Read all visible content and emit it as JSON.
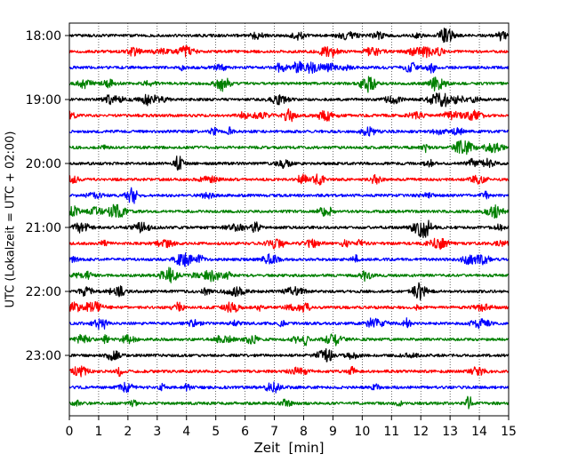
{
  "chart_data": {
    "type": "line",
    "title": "",
    "xlabel": "Zeit  [min]",
    "ylabel": "UTC (Lokalzeit = UTC + 02:00)",
    "xlim": [
      0,
      15
    ],
    "x_ticks": [
      "0",
      "1",
      "2",
      "3",
      "4",
      "5",
      "6",
      "7",
      "8",
      "9",
      "10",
      "11",
      "12",
      "13",
      "14",
      "15"
    ],
    "y_ticks": [
      "18:00",
      "19:00",
      "20:00",
      "21:00",
      "22:00",
      "23:00"
    ],
    "grid": {
      "x": true,
      "y": false,
      "style": "dotted"
    },
    "row_interval_minutes": 15,
    "row_start": "18:00",
    "row_count": 24,
    "color_cycle": [
      "#000000",
      "#ff0000",
      "#0000ff",
      "#008000"
    ],
    "series": [
      {
        "label": "18:00",
        "color": "#000000"
      },
      {
        "label": "18:15",
        "color": "#ff0000"
      },
      {
        "label": "18:30",
        "color": "#0000ff"
      },
      {
        "label": "18:45",
        "color": "#008000"
      },
      {
        "label": "19:00",
        "color": "#000000"
      },
      {
        "label": "19:15",
        "color": "#ff0000"
      },
      {
        "label": "19:30",
        "color": "#0000ff"
      },
      {
        "label": "19:45",
        "color": "#008000"
      },
      {
        "label": "20:00",
        "color": "#000000"
      },
      {
        "label": "20:15",
        "color": "#ff0000"
      },
      {
        "label": "20:30",
        "color": "#0000ff"
      },
      {
        "label": "20:45",
        "color": "#008000"
      },
      {
        "label": "21:00",
        "color": "#000000"
      },
      {
        "label": "21:15",
        "color": "#ff0000"
      },
      {
        "label": "21:30",
        "color": "#0000ff"
      },
      {
        "label": "21:45",
        "color": "#008000"
      },
      {
        "label": "22:00",
        "color": "#000000"
      },
      {
        "label": "22:15",
        "color": "#ff0000"
      },
      {
        "label": "22:30",
        "color": "#0000ff"
      },
      {
        "label": "22:45",
        "color": "#008000"
      },
      {
        "label": "23:00",
        "color": "#000000"
      },
      {
        "label": "23:15",
        "color": "#ff0000"
      },
      {
        "label": "23:30",
        "color": "#0000ff"
      },
      {
        "label": "23:45",
        "color": "#008000"
      }
    ]
  }
}
